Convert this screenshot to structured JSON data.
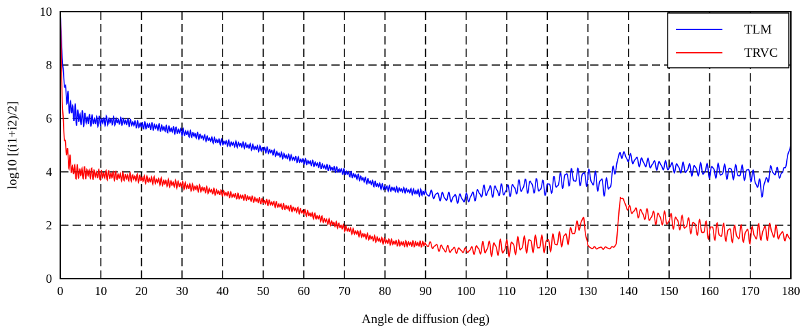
{
  "chart_data": {
    "type": "line",
    "title": "",
    "xlabel": "Angle de diffusion (deg)",
    "ylabel": "log10 [(i1+i2)/2]",
    "xlim": [
      0,
      180
    ],
    "ylim": [
      0,
      10
    ],
    "xticks": [
      0,
      10,
      20,
      30,
      40,
      50,
      60,
      70,
      80,
      90,
      100,
      110,
      120,
      130,
      140,
      150,
      160,
      170,
      180
    ],
    "yticks": [
      0,
      2,
      4,
      6,
      8,
      10
    ],
    "grid": true,
    "legend_position": "top-right",
    "series": [
      {
        "name": "TLM",
        "color": "#0000ff",
        "x": [
          0,
          0.5,
          1,
          1.5,
          2,
          3,
          4,
          5,
          7,
          10,
          15,
          20,
          25,
          30,
          35,
          40,
          45,
          50,
          55,
          60,
          65,
          70,
          75,
          80,
          85,
          90,
          95,
          100,
          105,
          110,
          115,
          120,
          125,
          130,
          135,
          138,
          140,
          145,
          150,
          155,
          160,
          165,
          170,
          173,
          175,
          178,
          180
        ],
        "y": [
          10,
          8.2,
          7.3,
          6.9,
          6.6,
          6.3,
          6.1,
          6.0,
          5.95,
          5.9,
          5.9,
          5.75,
          5.65,
          5.5,
          5.3,
          5.1,
          5.0,
          4.85,
          4.6,
          4.4,
          4.2,
          4.0,
          3.7,
          3.4,
          3.3,
          3.2,
          3.05,
          3.0,
          3.3,
          3.3,
          3.5,
          3.4,
          3.8,
          3.8,
          3.4,
          4.7,
          4.5,
          4.3,
          4.2,
          4.1,
          4.05,
          4.0,
          3.95,
          3.3,
          4.05,
          3.9,
          5.0
        ],
        "amplitude": [
          0,
          0,
          0.2,
          0.3,
          0.4,
          0.4,
          0.4,
          0.35,
          0.25,
          0.2,
          0.15,
          0.15,
          0.15,
          0.15,
          0.12,
          0.12,
          0.12,
          0.12,
          0.12,
          0.12,
          0.12,
          0.12,
          0.12,
          0.12,
          0.1,
          0.15,
          0.2,
          0.2,
          0.25,
          0.25,
          0.3,
          0.3,
          0.35,
          0.35,
          0.4,
          0.15,
          0.2,
          0.2,
          0.2,
          0.25,
          0.3,
          0.3,
          0.3,
          0.3,
          0.2,
          0.2,
          0
        ]
      },
      {
        "name": "TRVC",
        "color": "#ff0000",
        "x": [
          0,
          0.5,
          1,
          1.5,
          2,
          3,
          4,
          6,
          10,
          20,
          30,
          40,
          50,
          55,
          60,
          65,
          70,
          75,
          80,
          85,
          90,
          95,
          100,
          105,
          110,
          115,
          120,
          125,
          129,
          130,
          131,
          136,
          137,
          138,
          140,
          145,
          150,
          155,
          160,
          165,
          170,
          175,
          180
        ],
        "y": [
          10,
          6.5,
          5.3,
          4.8,
          4.5,
          4.1,
          4.0,
          3.95,
          3.9,
          3.75,
          3.5,
          3.2,
          2.9,
          2.7,
          2.5,
          2.2,
          1.9,
          1.6,
          1.4,
          1.3,
          1.3,
          1.1,
          1.05,
          1.15,
          1.15,
          1.3,
          1.3,
          1.55,
          2.2,
          1.2,
          1.15,
          1.15,
          1.3,
          3.1,
          2.6,
          2.35,
          2.2,
          2.0,
          1.8,
          1.7,
          1.65,
          1.8,
          1.5
        ],
        "amplitude": [
          0,
          0,
          0.2,
          0.3,
          0.35,
          0.35,
          0.3,
          0.25,
          0.2,
          0.15,
          0.15,
          0.12,
          0.12,
          0.12,
          0.12,
          0.12,
          0.12,
          0.12,
          0.12,
          0.12,
          0.12,
          0.15,
          0.1,
          0.3,
          0.35,
          0.35,
          0.35,
          0.3,
          0.2,
          0.05,
          0.05,
          0.05,
          0.05,
          0.05,
          0.15,
          0.25,
          0.3,
          0.3,
          0.35,
          0.35,
          0.35,
          0.35,
          0.1
        ]
      }
    ]
  }
}
